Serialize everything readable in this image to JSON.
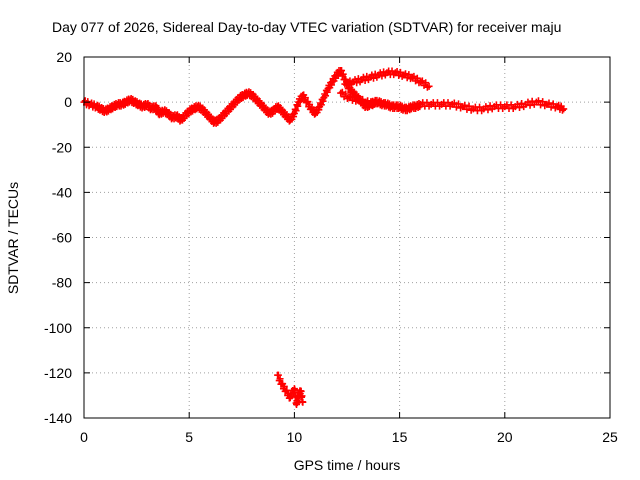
{
  "chart_data": {
    "type": "scatter",
    "title": "Day 077 of 2026, Sidereal Day-to-day VTEC variation (SDTVAR) for receiver maju",
    "xlabel": "GPS time / hours",
    "ylabel": "SDTVAR / TECUs",
    "xlim": [
      0,
      25
    ],
    "ylim": [
      -140,
      20
    ],
    "xticks": [
      0,
      5,
      10,
      15,
      20,
      25
    ],
    "yticks": [
      20,
      0,
      -20,
      -40,
      -60,
      -80,
      -100,
      -120,
      -140
    ],
    "grid": true,
    "marker": "+",
    "color": "#ff0000",
    "series": [
      {
        "name": "SDTVAR",
        "points": [
          [
            0.0,
            0
          ],
          [
            0.3,
            -1
          ],
          [
            0.6,
            -2
          ],
          [
            0.8,
            -3
          ],
          [
            1.0,
            -4
          ],
          [
            1.2,
            -3
          ],
          [
            1.4,
            -2
          ],
          [
            1.6,
            -1
          ],
          [
            1.8,
            -1
          ],
          [
            2.0,
            0
          ],
          [
            2.2,
            1
          ],
          [
            2.4,
            0
          ],
          [
            2.6,
            -1
          ],
          [
            2.8,
            -2
          ],
          [
            3.0,
            -1
          ],
          [
            3.2,
            -3
          ],
          [
            3.4,
            -2
          ],
          [
            3.5,
            -4
          ],
          [
            3.6,
            -5
          ],
          [
            3.8,
            -4
          ],
          [
            4.0,
            -5
          ],
          [
            4.2,
            -7
          ],
          [
            4.4,
            -6
          ],
          [
            4.6,
            -8
          ],
          [
            4.8,
            -6
          ],
          [
            5.0,
            -4
          ],
          [
            5.2,
            -3
          ],
          [
            5.4,
            -2
          ],
          [
            5.6,
            -3
          ],
          [
            5.8,
            -5
          ],
          [
            6.0,
            -7
          ],
          [
            6.2,
            -9
          ],
          [
            6.4,
            -8
          ],
          [
            6.6,
            -6
          ],
          [
            6.8,
            -4
          ],
          [
            7.0,
            -2
          ],
          [
            7.2,
            0
          ],
          [
            7.4,
            2
          ],
          [
            7.6,
            3
          ],
          [
            7.8,
            4
          ],
          [
            8.0,
            3
          ],
          [
            8.2,
            1
          ],
          [
            8.4,
            -1
          ],
          [
            8.6,
            -3
          ],
          [
            8.8,
            -5
          ],
          [
            9.0,
            -4
          ],
          [
            9.2,
            -2
          ],
          [
            9.4,
            -4
          ],
          [
            9.6,
            -6
          ],
          [
            9.8,
            -8
          ],
          [
            10.0,
            -5
          ],
          [
            10.2,
            0
          ],
          [
            10.4,
            3
          ],
          [
            10.6,
            0
          ],
          [
            10.8,
            -3
          ],
          [
            11.0,
            -5
          ],
          [
            11.2,
            -2
          ],
          [
            11.4,
            2
          ],
          [
            11.6,
            6
          ],
          [
            11.8,
            9
          ],
          [
            12.0,
            12
          ],
          [
            12.2,
            14
          ],
          [
            12.4,
            10
          ],
          [
            12.6,
            6
          ],
          [
            12.8,
            4
          ],
          [
            13.0,
            2
          ],
          [
            13.2,
            0
          ],
          [
            13.4,
            -2
          ],
          [
            13.6,
            -1
          ],
          [
            13.8,
            0
          ],
          [
            14.0,
            0
          ],
          [
            14.2,
            -1
          ],
          [
            14.4,
            -1
          ],
          [
            14.6,
            -2
          ],
          [
            14.8,
            -2
          ],
          [
            15.0,
            -2
          ],
          [
            15.2,
            -3
          ],
          [
            15.4,
            -3
          ],
          [
            15.6,
            -2
          ],
          [
            15.8,
            -2
          ],
          [
            16.0,
            -1
          ],
          [
            16.5,
            -1
          ],
          [
            17.0,
            -1
          ],
          [
            17.5,
            -1
          ],
          [
            18.0,
            -2
          ],
          [
            18.5,
            -3
          ],
          [
            19.0,
            -3
          ],
          [
            19.5,
            -2
          ],
          [
            20.0,
            -2
          ],
          [
            20.5,
            -2
          ],
          [
            21.0,
            -1
          ],
          [
            21.5,
            0
          ],
          [
            22.0,
            -1
          ],
          [
            22.5,
            -2
          ],
          [
            22.8,
            -3
          ],
          [
            12.4,
            8
          ],
          [
            12.8,
            9
          ],
          [
            13.2,
            10
          ],
          [
            13.6,
            11
          ],
          [
            14.0,
            12
          ],
          [
            14.4,
            13
          ],
          [
            14.8,
            13
          ],
          [
            15.2,
            12
          ],
          [
            15.6,
            11
          ],
          [
            16.0,
            9
          ],
          [
            16.4,
            7
          ],
          [
            12.2,
            4
          ],
          [
            12.6,
            2
          ],
          [
            13.0,
            1
          ],
          [
            13.4,
            0
          ],
          [
            13.8,
            -1
          ],
          [
            9.2,
            -121
          ],
          [
            9.4,
            -125
          ],
          [
            9.6,
            -128
          ],
          [
            9.8,
            -131
          ],
          [
            10.0,
            -127
          ],
          [
            10.1,
            -134
          ],
          [
            10.2,
            -130
          ],
          [
            10.3,
            -128
          ],
          [
            10.4,
            -133
          ]
        ]
      }
    ]
  }
}
